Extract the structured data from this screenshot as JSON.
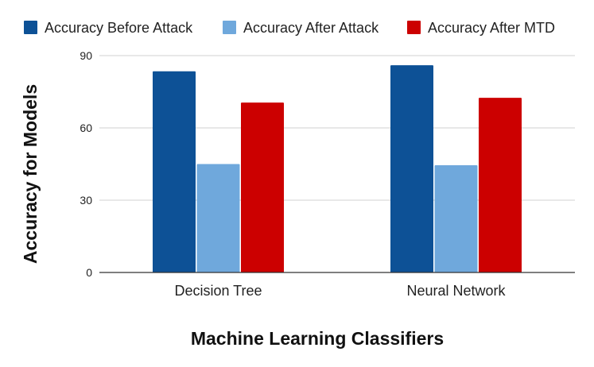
{
  "chart_data": {
    "type": "bar",
    "title": "",
    "xlabel": "Machine Learning Classifiers",
    "ylabel": "Accuracy for Models",
    "categories": [
      "Decision Tree",
      "Neural Network"
    ],
    "series": [
      {
        "name": "Accuracy Before Attack",
        "values": [
          83.5,
          86
        ],
        "color": "#0d5196"
      },
      {
        "name": "Accuracy After Attack",
        "values": [
          45,
          44.5
        ],
        "color": "#6fa8dc"
      },
      {
        "name": "Accuracy After MTD",
        "values": [
          70.5,
          72.5
        ],
        "color": "#cc0000"
      }
    ],
    "yticks": [
      "0",
      "30",
      "60",
      "90"
    ],
    "ylim": [
      0,
      90
    ],
    "grid": true,
    "legend_position": "top"
  }
}
